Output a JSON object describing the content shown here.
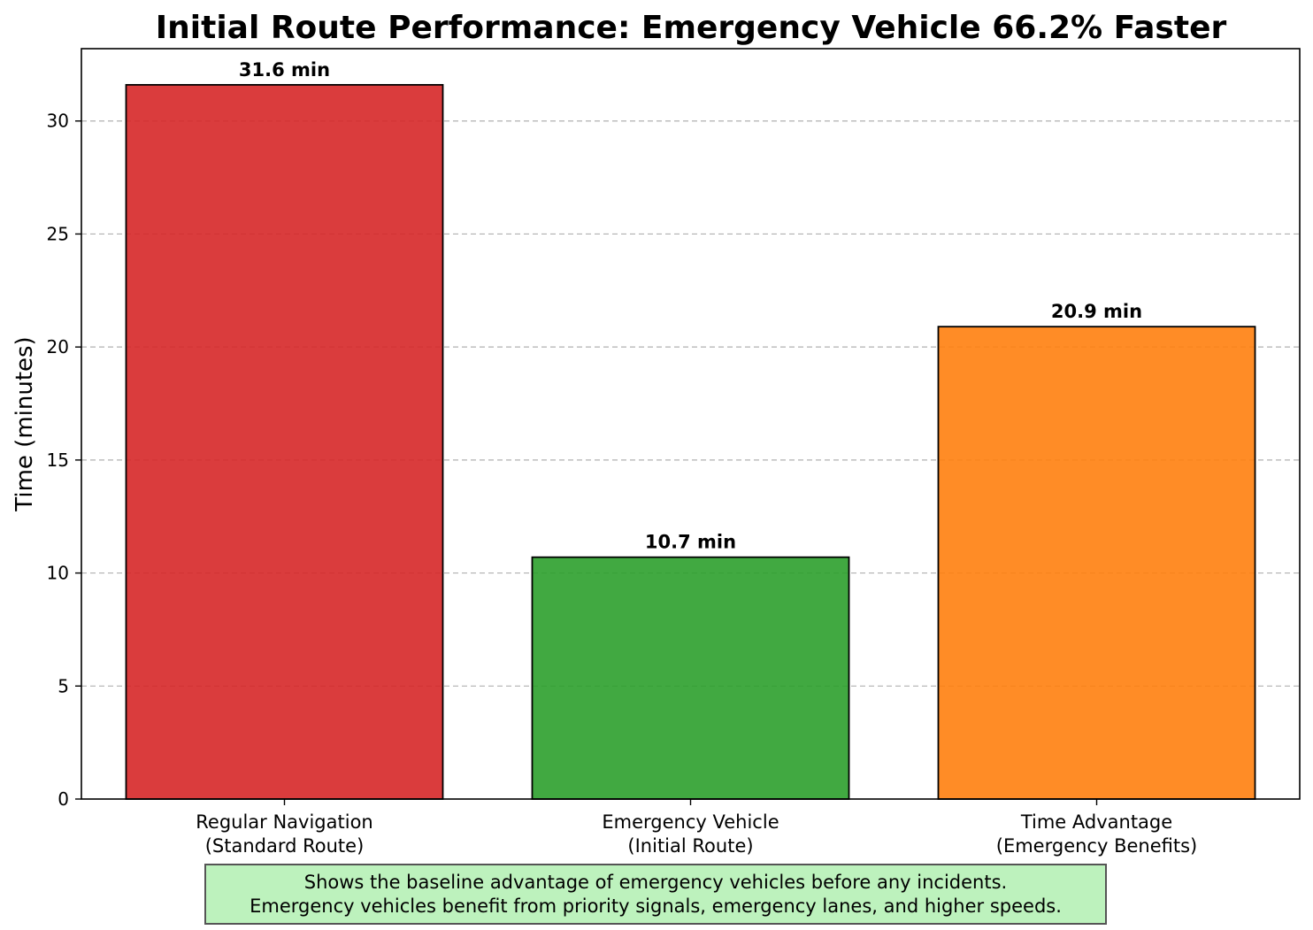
{
  "chart_data": {
    "type": "bar",
    "title": "Initial Route Performance: Emergency Vehicle 66.2% Faster",
    "xlabel": "",
    "ylabel": "Time (minutes)",
    "ylim": [
      0,
      33.2
    ],
    "yticks": [
      0,
      5,
      10,
      15,
      20,
      25,
      30
    ],
    "grid": "y-dashed",
    "categories": [
      [
        "Regular Navigation",
        "(Standard Route)"
      ],
      [
        "Emergency Vehicle",
        "(Initial Route)"
      ],
      [
        "Time Advantage",
        "(Emergency Benefits)"
      ]
    ],
    "values": [
      31.6,
      10.7,
      20.9
    ],
    "value_labels": [
      "31.6 min",
      "10.7 min",
      "20.9 min"
    ],
    "colors": [
      "#d62728",
      "#2ca02c",
      "#ff7f0e"
    ]
  },
  "caption": {
    "line1": "Shows the baseline advantage of emergency vehicles before any incidents.",
    "line2": "Emergency vehicles benefit from priority signals, emergency lanes, and higher speeds."
  }
}
